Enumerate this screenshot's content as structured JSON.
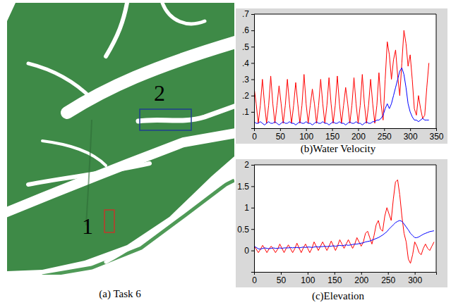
{
  "map": {
    "caption": "(a) Task 6",
    "regions": [
      {
        "label": "1",
        "color": "#c0392b"
      },
      {
        "label": "2",
        "color": "#1f3f8f"
      }
    ]
  },
  "chart_data": [
    {
      "type": "line",
      "title": "(b)Water Velocity",
      "xlim": [
        0,
        350
      ],
      "xticks": [
        0,
        50,
        100,
        150,
        200,
        250,
        300,
        350
      ],
      "ylim": [
        0,
        0.7
      ],
      "yticks": [
        {
          "value": 0.1,
          "label": ".1"
        },
        {
          "value": 0.2,
          "label": ".2"
        },
        {
          "value": 0.3,
          "label": ".3"
        },
        {
          "value": 0.4,
          "label": ".4"
        },
        {
          "value": 0.5,
          "label": ".5"
        },
        {
          "value": 0.6,
          "label": ".6"
        },
        {
          "value": 0.7,
          "label": ".7"
        }
      ],
      "x": [
        0,
        4,
        8,
        12,
        16,
        20,
        24,
        28,
        32,
        36,
        40,
        44,
        48,
        52,
        56,
        60,
        64,
        68,
        72,
        76,
        80,
        84,
        88,
        92,
        96,
        100,
        104,
        108,
        112,
        116,
        120,
        124,
        128,
        132,
        136,
        140,
        144,
        148,
        152,
        156,
        160,
        164,
        168,
        172,
        176,
        180,
        184,
        188,
        192,
        196,
        200,
        204,
        208,
        212,
        216,
        220,
        224,
        228,
        232,
        236,
        240,
        244,
        248,
        252,
        256,
        260,
        264,
        268,
        272,
        276,
        280,
        284,
        288,
        292,
        296,
        300,
        304,
        308,
        312,
        316,
        320,
        324,
        328,
        332,
        336
      ],
      "series": [
        {
          "color": "#ff0000",
          "values": [
            0.25,
            0.15,
            0.03,
            0.14,
            0.3,
            0.15,
            0.03,
            0.14,
            0.32,
            0.15,
            0.03,
            0.14,
            0.26,
            0.15,
            0.03,
            0.14,
            0.3,
            0.15,
            0.03,
            0.14,
            0.28,
            0.15,
            0.03,
            0.14,
            0.33,
            0.15,
            0.03,
            0.14,
            0.24,
            0.15,
            0.03,
            0.14,
            0.3,
            0.15,
            0.03,
            0.14,
            0.31,
            0.15,
            0.03,
            0.14,
            0.32,
            0.15,
            0.03,
            0.14,
            0.25,
            0.15,
            0.03,
            0.14,
            0.31,
            0.15,
            0.03,
            0.14,
            0.33,
            0.15,
            0.03,
            0.14,
            0.3,
            0.15,
            0.03,
            0.14,
            0.34,
            0.15,
            0.05,
            0.3,
            0.53,
            0.45,
            0.3,
            0.42,
            0.48,
            0.32,
            0.2,
            0.4,
            0.6,
            0.52,
            0.38,
            0.45,
            0.3,
            0.12,
            0.08,
            0.2,
            0.12,
            0.06,
            0.08,
            0.25,
            0.4
          ]
        },
        {
          "color": "#0000ff",
          "values": [
            0.04,
            0.03,
            0.03,
            0.04,
            0.03,
            0.02,
            0.03,
            0.04,
            0.03,
            0.03,
            0.04,
            0.03,
            0.02,
            0.03,
            0.04,
            0.03,
            0.03,
            0.04,
            0.03,
            0.03,
            0.02,
            0.03,
            0.04,
            0.03,
            0.03,
            0.04,
            0.03,
            0.03,
            0.02,
            0.03,
            0.04,
            0.03,
            0.03,
            0.04,
            0.03,
            0.03,
            0.02,
            0.03,
            0.04,
            0.03,
            0.03,
            0.04,
            0.03,
            0.03,
            0.02,
            0.03,
            0.04,
            0.03,
            0.03,
            0.04,
            0.03,
            0.03,
            0.02,
            0.03,
            0.04,
            0.03,
            0.03,
            0.04,
            0.04,
            0.05,
            0.05,
            0.06,
            0.08,
            0.12,
            0.15,
            0.12,
            0.15,
            0.2,
            0.25,
            0.3,
            0.35,
            0.37,
            0.33,
            0.25,
            0.15,
            0.1,
            0.07,
            0.05,
            0.05,
            0.04,
            0.05,
            0.06,
            0.05,
            0.05,
            0.05
          ]
        }
      ]
    },
    {
      "type": "line",
      "title": "(c)Elevation",
      "xlim": [
        0,
        340
      ],
      "xticks": [
        0,
        50,
        100,
        150,
        200,
        250,
        300
      ],
      "ylim": [
        -0.5,
        2
      ],
      "yticks": [
        0,
        0.5,
        1,
        1.5,
        2
      ],
      "x": [
        0,
        4,
        8,
        12,
        16,
        20,
        24,
        28,
        32,
        36,
        40,
        44,
        48,
        52,
        56,
        60,
        64,
        68,
        72,
        76,
        80,
        84,
        88,
        92,
        96,
        100,
        104,
        108,
        112,
        116,
        120,
        124,
        128,
        132,
        136,
        140,
        144,
        148,
        152,
        156,
        160,
        164,
        168,
        172,
        176,
        180,
        184,
        188,
        192,
        196,
        200,
        204,
        208,
        212,
        216,
        220,
        224,
        228,
        232,
        236,
        240,
        244,
        248,
        252,
        256,
        260,
        264,
        268,
        272,
        276,
        280,
        284,
        288,
        292,
        296,
        300,
        304,
        308,
        312,
        316,
        320,
        324,
        328,
        332,
        336
      ],
      "series": [
        {
          "color": "#ff0000",
          "values": [
            0.1,
            0.03,
            -0.05,
            0.03,
            0.12,
            0.04,
            -0.05,
            0.04,
            0.1,
            0.03,
            -0.05,
            0.03,
            0.15,
            0.05,
            -0.05,
            0.05,
            0.13,
            0.04,
            -0.05,
            0.04,
            0.17,
            0.06,
            -0.05,
            0.06,
            0.15,
            0.05,
            -0.05,
            0.05,
            0.2,
            0.1,
            0,
            0.1,
            0.2,
            0.1,
            0,
            0.1,
            0.22,
            0.11,
            0,
            0.11,
            0.25,
            0.15,
            0.05,
            0.15,
            0.25,
            0.15,
            0.05,
            0.15,
            0.3,
            0.2,
            0.1,
            0.2,
            0.4,
            0.45,
            0.3,
            0.15,
            0.35,
            0.6,
            0.7,
            0.5,
            0.45,
            0.8,
            1.0,
            0.85,
            0.7,
            1.2,
            1.6,
            1.65,
            1.3,
            0.8,
            0.4,
            0.2,
            -0.2,
            -0.3,
            -0.1,
            0.2,
            0.1,
            -0.05,
            -0.1,
            0.05,
            0.15,
            0.05,
            0.0,
            0.1,
            0.2
          ]
        },
        {
          "color": "#0000ff",
          "values": [
            0.1,
            0.07,
            0.04,
            0.03,
            0.05,
            0.06,
            0.05,
            0.04,
            0.05,
            0.06,
            0.05,
            0.05,
            0.06,
            0.05,
            0.06,
            0.06,
            0.06,
            0.07,
            0.06,
            0.07,
            0.07,
            0.06,
            0.07,
            0.08,
            0.07,
            0.08,
            0.08,
            0.07,
            0.08,
            0.09,
            0.08,
            0.09,
            0.09,
            0.1,
            0.09,
            0.1,
            0.1,
            0.11,
            0.1,
            0.11,
            0.12,
            0.11,
            0.12,
            0.13,
            0.12,
            0.13,
            0.14,
            0.15,
            0.15,
            0.16,
            0.17,
            0.18,
            0.2,
            0.21,
            0.22,
            0.24,
            0.26,
            0.28,
            0.3,
            0.33,
            0.36,
            0.4,
            0.44,
            0.5,
            0.55,
            0.6,
            0.65,
            0.68,
            0.7,
            0.68,
            0.62,
            0.55,
            0.48,
            0.4,
            0.35,
            0.3,
            0.3,
            0.32,
            0.35,
            0.38,
            0.4,
            0.42,
            0.44,
            0.45,
            0.46
          ]
        }
      ]
    }
  ]
}
